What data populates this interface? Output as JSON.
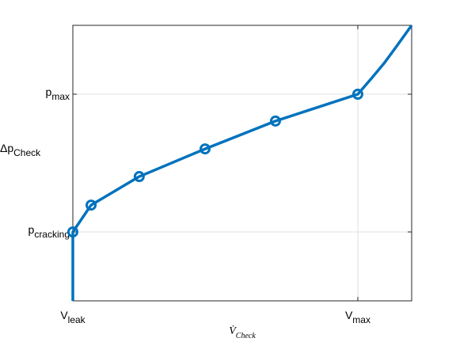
{
  "chart_data": {
    "type": "line",
    "xlabel": "V̇_{Check}",
    "ylabel": "Δp_{Check}",
    "xlim": [
      0,
      1.189
    ],
    "ylim": [
      0.5,
      2.5
    ],
    "xticks": [
      {
        "value": 0,
        "label": "V_{leak}"
      },
      {
        "value": 1,
        "label": "V_{max}"
      }
    ],
    "yticks": [
      {
        "value": 1,
        "label": "p_{cracking}"
      },
      {
        "value": 2,
        "label": "p_{max}"
      }
    ],
    "grid": true,
    "color": "#0072bd",
    "series": [
      {
        "x": [
          0,
          0,
          0.064,
          0.233,
          0.464,
          0.711,
          1,
          1.05,
          1.092,
          1.133,
          1.189
        ],
        "values": [
          0.5,
          1,
          1.195,
          1.402,
          1.603,
          1.805,
          2.0,
          2.12,
          2.224,
          2.339,
          2.5
        ]
      },
      {
        "x": [
          0,
          0.064,
          0.233,
          0.464,
          0.711,
          1
        ],
        "values": [
          1,
          1.195,
          1.402,
          1.603,
          1.805,
          2.0
        ],
        "marker": "o"
      }
    ]
  }
}
